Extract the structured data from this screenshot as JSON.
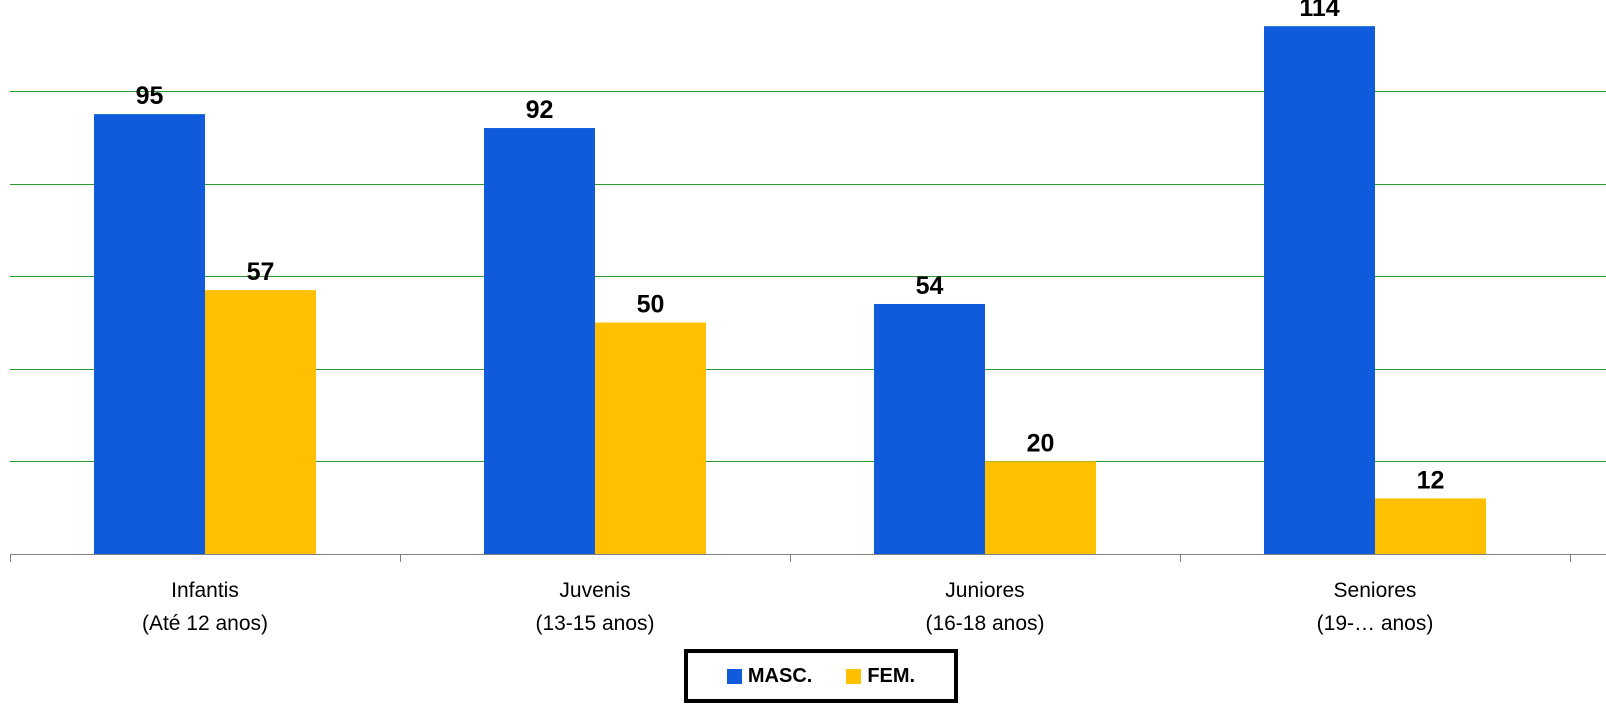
{
  "chart_data": {
    "type": "bar",
    "categories": [
      [
        "Infantis",
        "(Até 12 anos)"
      ],
      [
        "Juvenis",
        "(13-15 anos)"
      ],
      [
        "Juniores",
        "(16-18 anos)"
      ],
      [
        "Seniores",
        "(19-… anos)"
      ]
    ],
    "series": [
      {
        "name": "MASC.",
        "color": "#0F5BDC",
        "values": [
          95,
          92,
          54,
          114
        ]
      },
      {
        "name": "FEM.",
        "color": "#FFC000",
        "values": [
          57,
          50,
          20,
          12
        ]
      }
    ],
    "ylim": [
      0,
      120
    ],
    "grid": true,
    "grid_color": "#2E9B2E",
    "legend_position": "bottom-center"
  },
  "legend": {
    "items": [
      {
        "label": "MASC.",
        "color": "#0F5BDC"
      },
      {
        "label": "FEM.",
        "color": "#FFC000"
      }
    ]
  }
}
